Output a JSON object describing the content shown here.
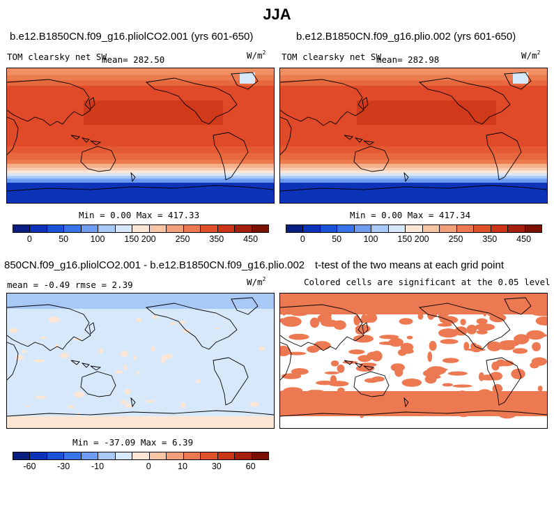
{
  "figure": {
    "title": "JJA"
  },
  "panels": [
    {
      "id": "p1",
      "case": "b.e12.B1850CN.f09_g16.pliolCO2.001 (yrs 601-650)",
      "variable": "TOM clearsky net SW",
      "mean_label": "mean= 282.50",
      "units": "W/m",
      "units_sup": "2",
      "stats": "Min =   0.00 Max = 417.33",
      "colorbar": "cbar_abs"
    },
    {
      "id": "p2",
      "case": "b.e12.B1850CN.f09_g16.plio.002 (yrs 601-650)",
      "variable": "TOM clearsky net SW",
      "mean_label": "mean= 282.98",
      "units": "W/m",
      "units_sup": "2",
      "stats": "Min =   0.00 Max = 417.34",
      "colorbar": "cbar_abs"
    },
    {
      "id": "p3",
      "case": "850CN.f09_g16.pliolCO2.001 - b.e12.B1850CN.f09_g16.plio.002",
      "stats_line": "mean =  -0.49    rmse =   2.39",
      "units": "W/m",
      "units_sup": "2",
      "stats": "Min = -37.09 Max =   6.39",
      "colorbar": "cbar_diff"
    },
    {
      "id": "p4",
      "case": "t-test of the two means at each grid point",
      "subtitle": "Colored cells are significant at the 0.05 level"
    }
  ],
  "colorbars": {
    "cbar_abs": {
      "tick_labels": [
        "0",
        "50",
        "100",
        "150",
        "200",
        "250",
        "350",
        "450"
      ],
      "colors": [
        "#0a1f82",
        "#0d34b8",
        "#1b52d8",
        "#3a74ea",
        "#6d9cf2",
        "#a8c8f6",
        "#d7e8fa",
        "#fde6d3",
        "#f9c6a5",
        "#f3a07a",
        "#ec7951",
        "#e0522c",
        "#cc3417",
        "#a61f0c",
        "#7a0f03"
      ]
    },
    "cbar_diff": {
      "tick_labels": [
        "-60",
        "-30",
        "-10",
        "0",
        "10",
        "30",
        "60"
      ],
      "colors": [
        "#0a1f82",
        "#0d34b8",
        "#1b52d8",
        "#3a74ea",
        "#6d9cf2",
        "#a8c8f6",
        "#d7e8fa",
        "#fde6d3",
        "#f9c6a5",
        "#f3a07a",
        "#ec7951",
        "#e0522c",
        "#cc3417",
        "#a61f0c",
        "#7a0f03"
      ]
    }
  },
  "map_colors": {
    "sw_bands": [
      "#e04a28",
      "#e55a32",
      "#e8683e",
      "#ec7b4f",
      "#f09064",
      "#f5b08c",
      "#f9cbb0",
      "#fde6d3",
      "#d7e8fa",
      "#a8c8f6",
      "#6d9cf2",
      "#3a74ea",
      "#1b52d8",
      "#0d34b8"
    ],
    "deep": "#cc3417",
    "diff_base": "#d7e8fa",
    "diff_light": "#fde6d3",
    "diff_blue": "#a8c8f6",
    "signif": "#ec7951"
  }
}
